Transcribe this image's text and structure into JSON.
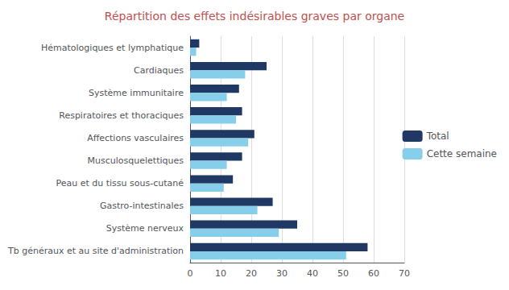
{
  "chart_data": {
    "type": "bar",
    "orientation": "horizontal",
    "title": "Répartition des effets indésirables graves par organe",
    "title_color": "#C0504D",
    "categories": [
      "Tb généraux et au site d'administration",
      "Système nerveux",
      "Gastro-intestinales",
      "Peau et du tissu sous-cutané",
      "Musculosquelettiques",
      "Affections vasculaires",
      "Respiratoires et thoraciques",
      "Système immunitaire",
      "Cardiaques",
      "Hématologiques et lymphatique"
    ],
    "series": [
      {
        "name": "Total",
        "color": "#1F3864",
        "values": [
          58,
          35,
          27,
          14,
          17,
          21,
          17,
          16,
          25,
          3
        ]
      },
      {
        "name": "Cette semaine",
        "color": "#87CEEB",
        "values": [
          51,
          29,
          22,
          11,
          12,
          19,
          15,
          12,
          18,
          2
        ]
      }
    ],
    "xlim": [
      0,
      70
    ],
    "xticks": [
      0,
      10,
      20,
      30,
      40,
      50,
      60,
      70
    ],
    "grid": true,
    "legend": "right"
  }
}
